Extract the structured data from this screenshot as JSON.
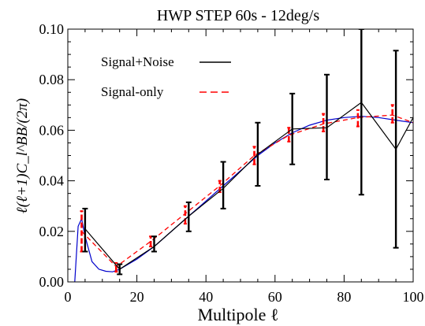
{
  "chart_data": {
    "type": "line",
    "title": "HWP STEP 60s - 12deg/s",
    "xlabel": "Multipole ℓ",
    "ylabel": "ℓ(ℓ+1)C_l^BB/(2π)",
    "xlim": [
      0,
      100
    ],
    "ylim": [
      0,
      0.1
    ],
    "x_ticks": [
      0,
      20,
      40,
      60,
      80,
      100
    ],
    "x_tick_labels": [
      "0",
      "20",
      "40",
      "60",
      "80",
      "100"
    ],
    "y_ticks": [
      0.0,
      0.02,
      0.04,
      0.06,
      0.08,
      0.1
    ],
    "y_tick_labels": [
      "0.00",
      "0.02",
      "0.04",
      "0.06",
      "0.08",
      "0.10"
    ],
    "legend_position": "top-left",
    "series": [
      {
        "name": "Signal+Noise",
        "color": "#000000",
        "style": "solid",
        "x": [
          5,
          15,
          25,
          35,
          45,
          55,
          65,
          75,
          85,
          95,
          100
        ],
        "y": [
          0.021,
          0.005,
          0.014,
          0.026,
          0.037,
          0.0505,
          0.0605,
          0.061,
          0.071,
          0.0525,
          0.065
        ],
        "err_low": [
          0.012,
          0.003,
          0.012,
          0.02,
          0.029,
          0.038,
          0.0465,
          0.0405,
          0.0345,
          0.0135,
          null
        ],
        "err_high": [
          0.029,
          0.007,
          0.018,
          0.0315,
          0.0475,
          0.063,
          0.0745,
          0.082,
          0.1,
          0.0915,
          null
        ]
      },
      {
        "name": "Signal-only",
        "color": "#ff0000",
        "style": "dashed",
        "x": [
          4,
          14,
          24,
          34,
          44,
          54,
          64,
          74,
          84,
          94,
          100
        ],
        "y": [
          0.02,
          0.006,
          0.016,
          0.027,
          0.038,
          0.05,
          0.058,
          0.0625,
          0.065,
          0.066,
          0.063
        ],
        "err_low": [
          0.012,
          0.004,
          0.014,
          0.023,
          0.0355,
          0.0465,
          0.0555,
          0.0595,
          0.0615,
          0.063,
          null
        ],
        "err_high": [
          0.028,
          0.0075,
          0.018,
          0.03,
          0.04,
          0.0535,
          0.061,
          0.0665,
          0.068,
          0.07,
          null
        ]
      },
      {
        "name": "",
        "color": "#0000cc",
        "style": "solid",
        "x": [
          2,
          3,
          4,
          5,
          7,
          9,
          11,
          13,
          15,
          20,
          25,
          30,
          35,
          40,
          45,
          50,
          55,
          60,
          65,
          70,
          75,
          80,
          85,
          90,
          95,
          100
        ],
        "y": [
          0.0,
          0.022,
          0.025,
          0.018,
          0.008,
          0.005,
          0.0042,
          0.004,
          0.005,
          0.009,
          0.014,
          0.02,
          0.026,
          0.032,
          0.038,
          0.044,
          0.05,
          0.055,
          0.059,
          0.062,
          0.064,
          0.065,
          0.0655,
          0.065,
          0.064,
          0.063
        ]
      }
    ]
  }
}
